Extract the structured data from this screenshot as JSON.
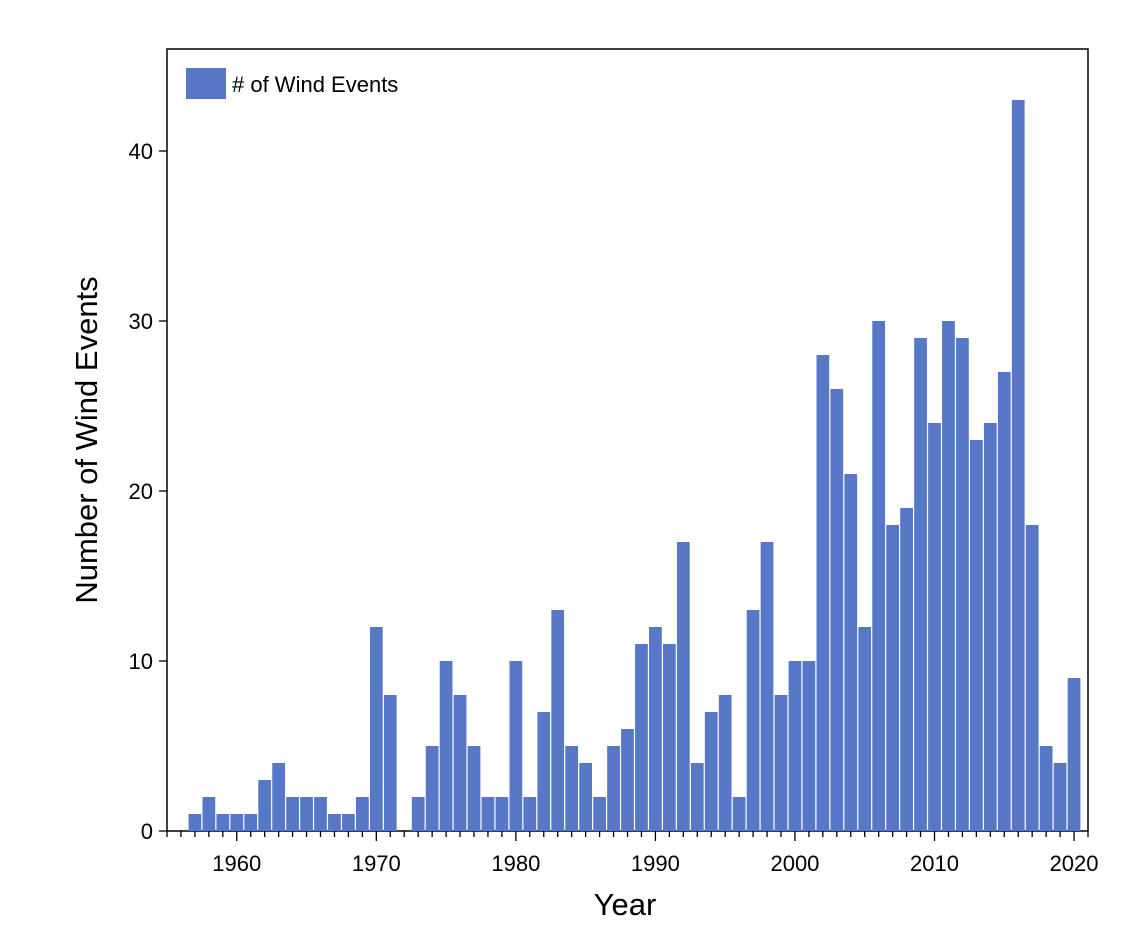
{
  "chart_data": {
    "type": "bar",
    "title": "",
    "xlabel": "Year",
    "ylabel": "Number of Wind Events",
    "xlim": [
      1955,
      2021
    ],
    "ylim": [
      0,
      46
    ],
    "x_ticks": [
      1960,
      1970,
      1980,
      1990,
      2000,
      2010,
      2020
    ],
    "y_ticks": [
      0,
      10,
      20,
      30,
      40
    ],
    "legend_position": "top-left",
    "grid": false,
    "bar_color": "#5778c6",
    "series": [
      {
        "name": "# of Wind Events",
        "x": [
          1957,
          1958,
          1959,
          1960,
          1961,
          1962,
          1963,
          1964,
          1965,
          1966,
          1967,
          1968,
          1969,
          1970,
          1971,
          1972,
          1973,
          1974,
          1975,
          1976,
          1977,
          1978,
          1979,
          1980,
          1981,
          1982,
          1983,
          1984,
          1985,
          1986,
          1987,
          1988,
          1989,
          1990,
          1991,
          1992,
          1993,
          1994,
          1995,
          1996,
          1997,
          1998,
          1999,
          2000,
          2001,
          2002,
          2003,
          2004,
          2005,
          2006,
          2007,
          2008,
          2009,
          2010,
          2011,
          2012,
          2013,
          2014,
          2015,
          2016,
          2017,
          2018,
          2019,
          2020
        ],
        "values": [
          1,
          2,
          1,
          1,
          1,
          3,
          4,
          2,
          2,
          2,
          1,
          1,
          2,
          12,
          8,
          0,
          2,
          5,
          10,
          8,
          5,
          2,
          2,
          10,
          2,
          7,
          13,
          5,
          4,
          2,
          5,
          6,
          11,
          12,
          11,
          17,
          4,
          7,
          8,
          2,
          13,
          17,
          8,
          10,
          10,
          28,
          26,
          21,
          12,
          30,
          18,
          19,
          29,
          24,
          30,
          29,
          23,
          24,
          27,
          43,
          18,
          5,
          4,
          9
        ]
      }
    ]
  }
}
